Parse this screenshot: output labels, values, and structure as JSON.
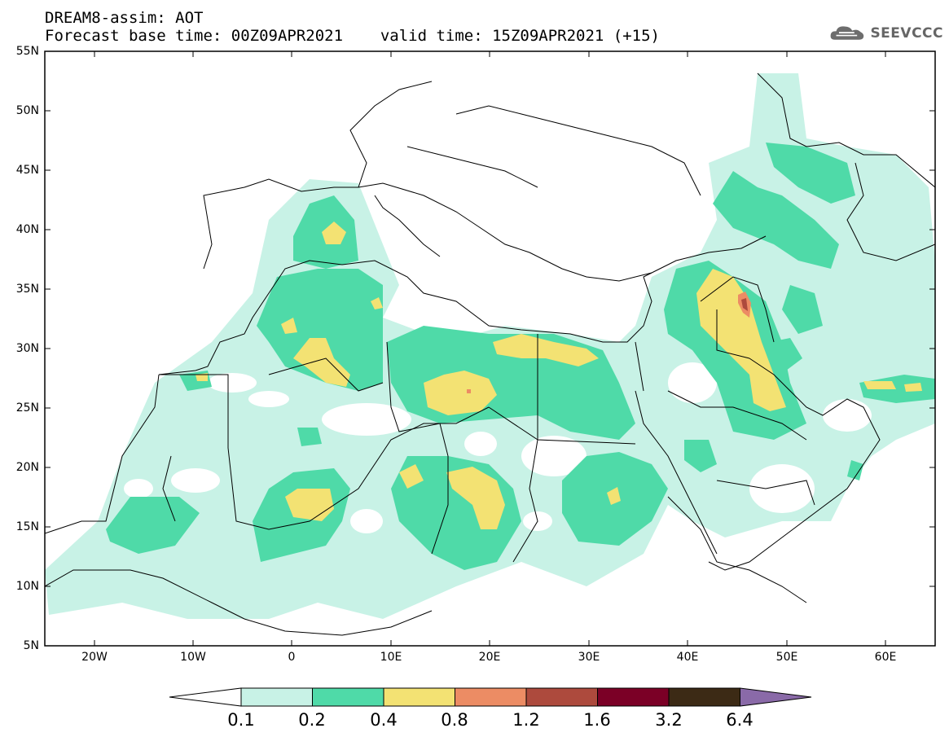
{
  "header": {
    "title": "DREAM8-assim: AOT",
    "base_time": "Forecast base time: 00Z09APR2021",
    "valid_time": "valid time: 15Z09APR2021 (+15)"
  },
  "logo": {
    "text": "SEEVCCC",
    "icon": "cloud-icon"
  },
  "map": {
    "lat_labels": [
      "55N",
      "50N",
      "45N",
      "40N",
      "35N",
      "30N",
      "25N",
      "20N",
      "15N",
      "10N",
      "5N"
    ],
    "lon_labels": [
      "20W",
      "10W",
      "0",
      "10E",
      "20E",
      "30E",
      "40E",
      "50E",
      "60E"
    ],
    "lat_range": [
      5,
      55
    ],
    "lon_range": [
      -25,
      65
    ]
  },
  "colorbar": {
    "labels": [
      "0.1",
      "0.2",
      "0.4",
      "0.8",
      "1.2",
      "1.6",
      "3.2",
      "6.4"
    ],
    "colors": [
      "#ffffff",
      "#c8f2e6",
      "#4fdaa8",
      "#f3e273",
      "#ec8c64",
      "#ad4a3d",
      "#7b0026",
      "#3c2a15",
      "#8a6aa8"
    ]
  },
  "legend_colors": {
    "aot_0_1_to_0_2": "#c8f2e6",
    "aot_0_2_to_0_4": "#4fdaa8",
    "aot_0_4_to_0_8": "#f3e273",
    "aot_0_8_to_1_2": "#ec8c64",
    "aot_1_2_to_1_6": "#ad4a3d"
  }
}
